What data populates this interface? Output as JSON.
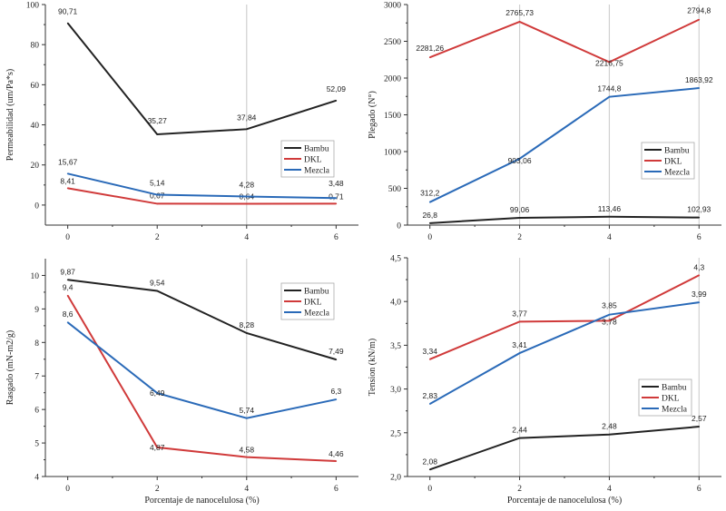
{
  "colors": {
    "Bambu": "#222222",
    "DKL": "#d03a3a",
    "Mezcla": "#2a6ab8"
  },
  "chart_data": [
    {
      "type": "line",
      "ylabel": "Permeabilidad (um/Pa*s)",
      "xlabel": "",
      "x": [
        0,
        2,
        4,
        6
      ],
      "xticks": [
        "0",
        "2",
        "4",
        "6"
      ],
      "xlim": [
        -0.5,
        6.5
      ],
      "ylim": [
        -10,
        100
      ],
      "yticks": [
        "0",
        "20",
        "40",
        "60",
        "80",
        "100"
      ],
      "gridlines_x": [
        4
      ],
      "legend": "right",
      "series": [
        {
          "name": "Bambu",
          "values": [
            90.71,
            35.27,
            37.84,
            52.09
          ],
          "labels": [
            "90,71",
            "35,27",
            "37,84",
            "52,09"
          ]
        },
        {
          "name": "DKL",
          "values": [
            8.41,
            0.67,
            0.64,
            0.71
          ],
          "labels": [
            "8,41",
            "0,67",
            "0,64",
            "0,71"
          ]
        },
        {
          "name": "Mezcla",
          "values": [
            15.67,
            5.14,
            4.28,
            3.48
          ],
          "labels": [
            "15,67",
            "5,14",
            "4,28",
            "3,48"
          ]
        }
      ]
    },
    {
      "type": "line",
      "ylabel": "Plegado (N°)",
      "xlabel": "",
      "x": [
        0,
        2,
        4,
        6
      ],
      "xticks": [
        "0",
        "2",
        "4",
        "6"
      ],
      "xlim": [
        -0.5,
        6.5
      ],
      "ylim": [
        0,
        3000
      ],
      "yticks": [
        "0",
        "500",
        "1000",
        "1500",
        "2000",
        "2500",
        "3000"
      ],
      "gridlines_x": [
        2,
        4,
        6
      ],
      "legend": "right",
      "series": [
        {
          "name": "Bambu",
          "values": [
            26.8,
            99.06,
            113.46,
            102.93
          ],
          "labels": [
            "26,8",
            "99,06",
            "113,46",
            "102,93"
          ]
        },
        {
          "name": "DKL",
          "values": [
            2281.26,
            2765.73,
            2216.75,
            2794.8
          ],
          "labels": [
            "2281,26",
            "2765,73",
            "2216,75",
            "2794,8"
          ]
        },
        {
          "name": "Mezcla",
          "values": [
            312.2,
            903.06,
            1744.8,
            1863.92
          ],
          "labels": [
            "312,2",
            "903,06",
            "1744,8",
            "1863,92"
          ]
        }
      ]
    },
    {
      "type": "line",
      "ylabel": "Rasgado (mN-m2/g)",
      "xlabel": "Porcentaje de nanocelulosa (%)",
      "x": [
        0,
        2,
        4,
        6
      ],
      "xticks": [
        "0",
        "2",
        "4",
        "6"
      ],
      "xlim": [
        -0.5,
        6.5
      ],
      "ylim": [
        4,
        10.5
      ],
      "yticks": [
        "4",
        "5",
        "6",
        "7",
        "8",
        "9",
        "10"
      ],
      "gridlines_x": [
        4
      ],
      "legend": "top-right",
      "series": [
        {
          "name": "Bambu",
          "values": [
            9.87,
            9.54,
            8.28,
            7.49
          ],
          "labels": [
            "9,87",
            "9,54",
            "8,28",
            "7,49"
          ]
        },
        {
          "name": "DKL",
          "values": [
            9.4,
            4.87,
            4.58,
            4.46
          ],
          "labels": [
            "9,4",
            "4,87",
            "4,58",
            "4,46"
          ]
        },
        {
          "name": "Mezcla",
          "values": [
            8.6,
            6.49,
            5.74,
            6.3
          ],
          "labels": [
            "8,6",
            "6,49",
            "5,74",
            "6,3"
          ]
        }
      ]
    },
    {
      "type": "line",
      "ylabel": "Tension (kN/m)",
      "xlabel": "Porcentaje de nanocelulosa (%)",
      "x": [
        0,
        2,
        4,
        6
      ],
      "xticks": [
        "0",
        "2",
        "4",
        "6"
      ],
      "xlim": [
        -0.5,
        6.5
      ],
      "ylim": [
        2.0,
        4.5
      ],
      "yticks": [
        "2,0",
        "2,5",
        "3,0",
        "3,5",
        "4,0",
        "4,5"
      ],
      "gridlines_x": [
        2,
        4,
        6
      ],
      "legend": "right",
      "series": [
        {
          "name": "Bambu",
          "values": [
            2.08,
            2.44,
            2.48,
            2.57
          ],
          "labels": [
            "2,08",
            "2,44",
            "2,48",
            "2,57"
          ]
        },
        {
          "name": "DKL",
          "values": [
            3.34,
            3.77,
            3.78,
            4.3
          ],
          "labels": [
            "3,34",
            "3,77",
            "3,78",
            "4,3"
          ]
        },
        {
          "name": "Mezcla",
          "values": [
            2.83,
            3.41,
            3.85,
            3.99
          ],
          "labels": [
            "2,83",
            "3,41",
            "3,85",
            "3,99"
          ]
        }
      ]
    }
  ]
}
